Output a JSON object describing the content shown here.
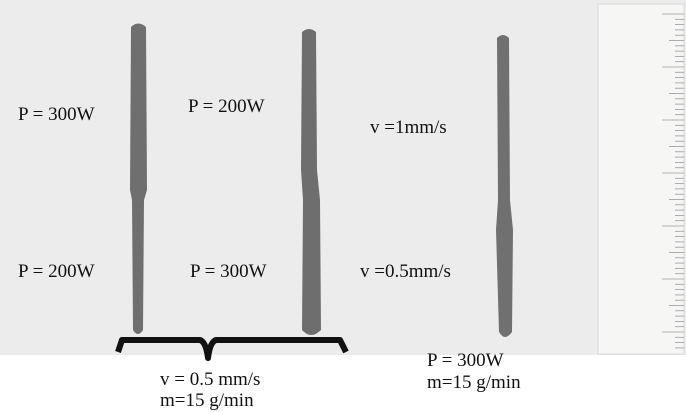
{
  "samples": [
    {
      "upper_label": "P = 300W",
      "lower_label": "P = 200W"
    },
    {
      "upper_label": "P = 200W",
      "lower_label": "P = 300W"
    },
    {
      "upper_label": "v =1mm/s",
      "lower_label": "v =0.5mm/s"
    }
  ],
  "group_caption": [
    "v = 0.5 mm/s",
    "m=15 g/min"
  ],
  "single_caption": [
    "P = 300W",
    "m=15 g/min"
  ]
}
